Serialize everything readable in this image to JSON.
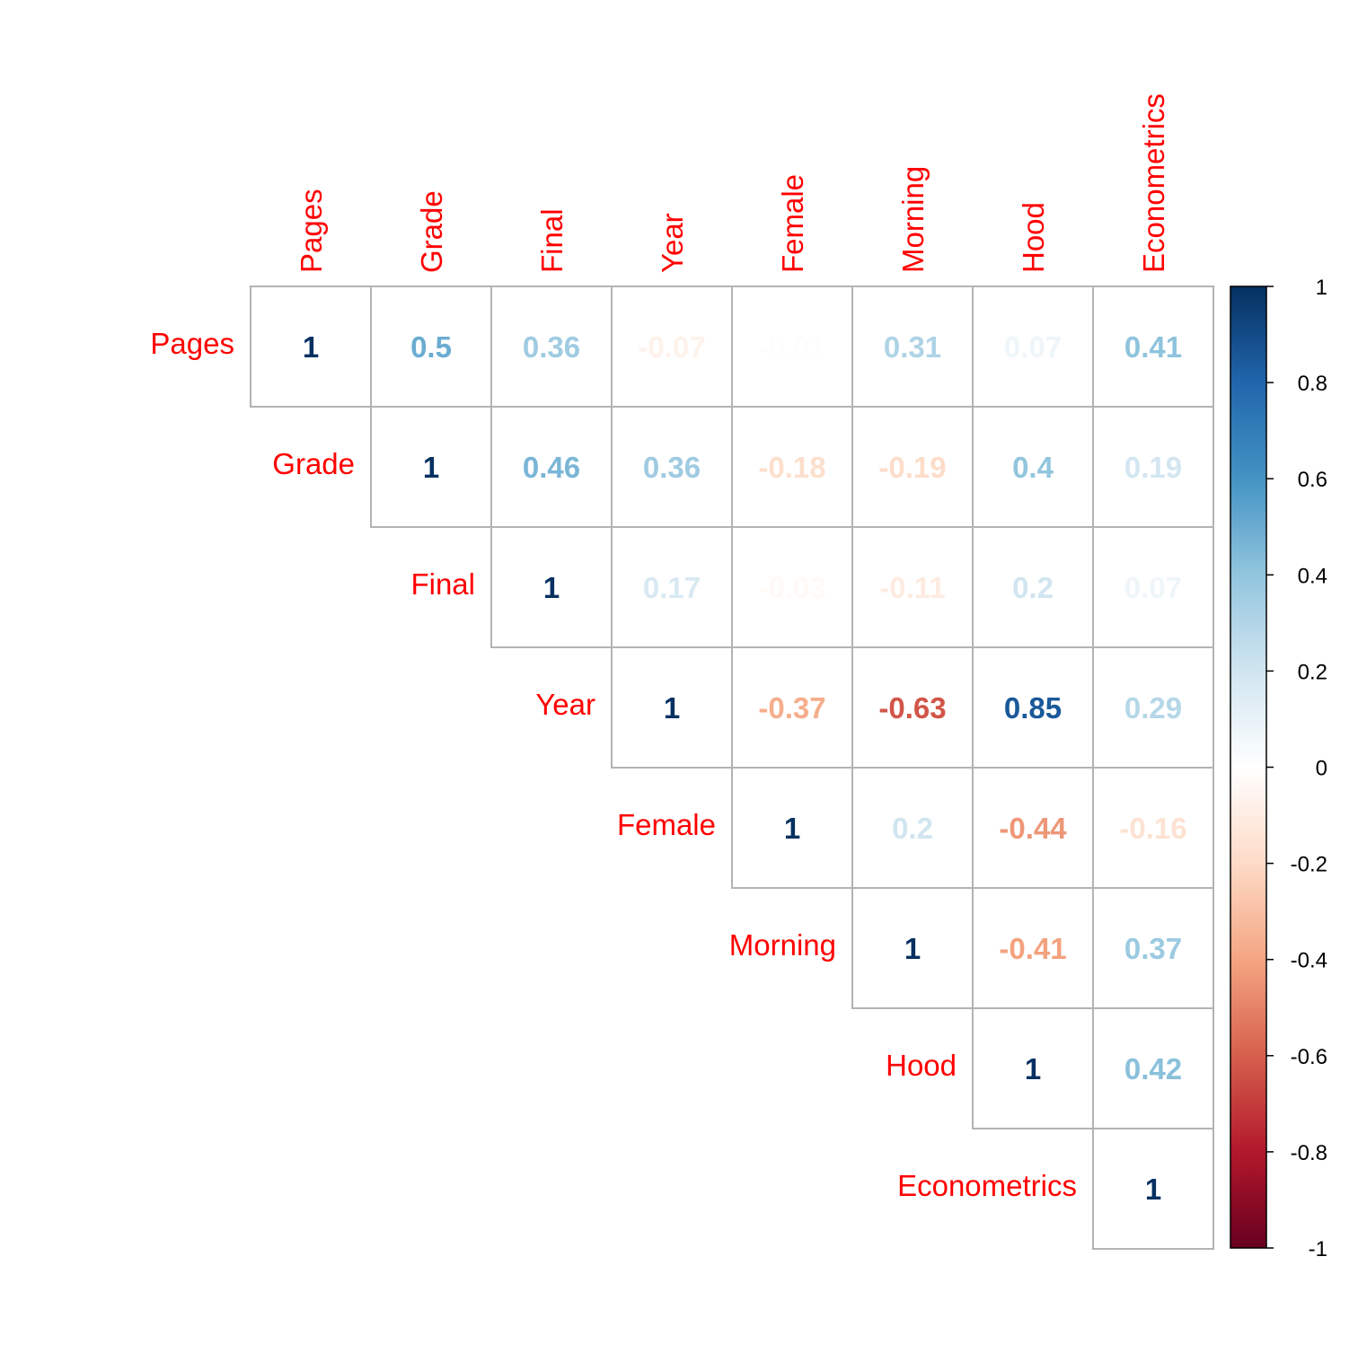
{
  "chart_data": {
    "type": "heatmap",
    "subtype": "correlation-matrix-upper-triangle",
    "variables": [
      "Pages",
      "Grade",
      "Final",
      "Year",
      "Female",
      "Morning",
      "Hood",
      "Econometrics"
    ],
    "matrix": [
      [
        1,
        0.5,
        0.36,
        -0.07,
        -0.01,
        0.31,
        0.07,
        0.41
      ],
      [
        null,
        1,
        0.46,
        0.36,
        -0.18,
        -0.19,
        0.4,
        0.19
      ],
      [
        null,
        null,
        1,
        0.17,
        -0.03,
        -0.11,
        0.2,
        0.07
      ],
      [
        null,
        null,
        null,
        1,
        -0.37,
        -0.63,
        0.85,
        0.29
      ],
      [
        null,
        null,
        null,
        null,
        1,
        0.2,
        -0.44,
        -0.16
      ],
      [
        null,
        null,
        null,
        null,
        null,
        1,
        -0.41,
        0.37
      ],
      [
        null,
        null,
        null,
        null,
        null,
        null,
        1,
        0.42
      ],
      [
        null,
        null,
        null,
        null,
        null,
        null,
        null,
        1
      ]
    ],
    "value_labels": [
      [
        "1",
        "0.5",
        "0.36",
        "-0.07",
        "-0.01",
        "0.31",
        "0.07",
        "0.41"
      ],
      [
        null,
        "1",
        "0.46",
        "0.36",
        "-0.18",
        "-0.19",
        "0.4",
        "0.19"
      ],
      [
        null,
        null,
        "1",
        "0.17",
        "-0.03",
        "-0.11",
        "0.2",
        "0.07"
      ],
      [
        null,
        null,
        null,
        "1",
        "-0.37",
        "-0.63",
        "0.85",
        "0.29"
      ],
      [
        null,
        null,
        null,
        null,
        "1",
        "0.2",
        "-0.44",
        "-0.16"
      ],
      [
        null,
        null,
        null,
        null,
        null,
        "1",
        "-0.41",
        "0.37"
      ],
      [
        null,
        null,
        null,
        null,
        null,
        null,
        "1",
        "0.42"
      ],
      [
        null,
        null,
        null,
        null,
        null,
        null,
        null,
        "1"
      ]
    ],
    "label_color": "#ff0000",
    "grid_color": "#b3b3b3",
    "colorbar": {
      "range": [
        -1,
        1
      ],
      "ticks": [
        "1",
        "0.8",
        "0.6",
        "0.4",
        "0.2",
        "0",
        "-0.2",
        "-0.4",
        "-0.6",
        "-0.8",
        "-1"
      ],
      "placement": "right",
      "colors": [
        "#67001F",
        "#B2182B",
        "#D6604D",
        "#F4A582",
        "#FDDBC7",
        "#FFFFFF",
        "#D1E5F0",
        "#92C5DE",
        "#4393C3",
        "#2166AC",
        "#053061"
      ]
    }
  }
}
